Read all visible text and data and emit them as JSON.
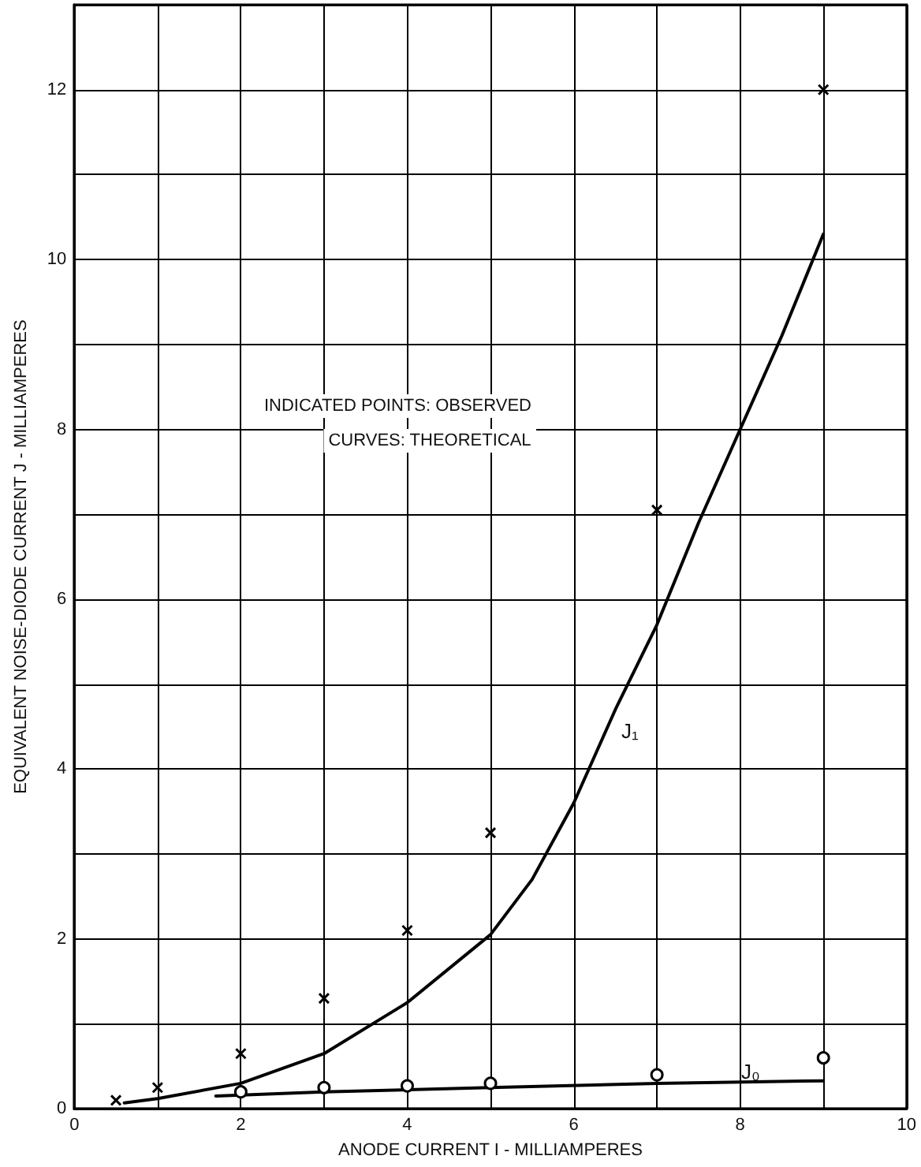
{
  "chart_data": {
    "type": "line",
    "xlabel": "ANODE CURRENT I - MILLIAMPERES",
    "ylabel": "EQUIVALENT NOISE-DIODE CURRENT J - MILLIAMPERES",
    "xlim": [
      0,
      10
    ],
    "ylim": [
      0,
      13
    ],
    "xticks": [
      0,
      {
        "value": 1,
        "label": null
      },
      2,
      {
        "value": 3,
        "label": null
      },
      4,
      {
        "value": 5,
        "label": null
      },
      6,
      {
        "value": 7,
        "label": null
      },
      8,
      {
        "value": 9,
        "label": null
      },
      10
    ],
    "yticks": [
      0,
      {
        "value": 1,
        "label": null
      },
      2,
      {
        "value": 3,
        "label": null
      },
      4,
      {
        "value": 5,
        "label": null
      },
      6,
      {
        "value": 7,
        "label": null
      },
      8,
      {
        "value": 9,
        "label": null
      },
      10,
      {
        "value": 11,
        "label": null
      },
      12,
      {
        "value": 13,
        "label": null
      }
    ],
    "grid": true,
    "series": [
      {
        "color": "#000000",
        "marker": "none",
        "line_style": "solid",
        "x": [
          0.6,
          1,
          2,
          3,
          4,
          5,
          5.5,
          6,
          6.5,
          7,
          7.5,
          8,
          8.5,
          9
        ],
        "values": [
          0.07,
          0.12,
          0.3,
          0.65,
          1.25,
          2.05,
          2.7,
          3.6,
          4.7,
          5.7,
          6.9,
          8.0,
          9.1,
          10.3
        ]
      },
      {
        "color": "#000000",
        "marker": "none",
        "line_style": "solid",
        "x": [
          1.7,
          3,
          5,
          7,
          9
        ],
        "values": [
          0.15,
          0.2,
          0.25,
          0.3,
          0.33
        ]
      },
      {
        "type": "scatter",
        "color": "#000000",
        "marker": "cross",
        "x": [
          0.5,
          1,
          2,
          3,
          4,
          5,
          7,
          9
        ],
        "values": [
          0.1,
          0.25,
          0.65,
          1.3,
          2.1,
          3.25,
          7.05,
          12.0
        ]
      },
      {
        "type": "scatter",
        "color": "#000000",
        "marker": "circle",
        "x": [
          2,
          3,
          4,
          5,
          7,
          9
        ],
        "values": [
          0.2,
          0.25,
          0.27,
          0.3,
          0.4,
          0.6
        ]
      }
    ],
    "annotations": [
      "INDICATED POINTS: OBSERVED",
      "CURVES: THEORETICAL",
      "J₁",
      "J₀"
    ]
  }
}
